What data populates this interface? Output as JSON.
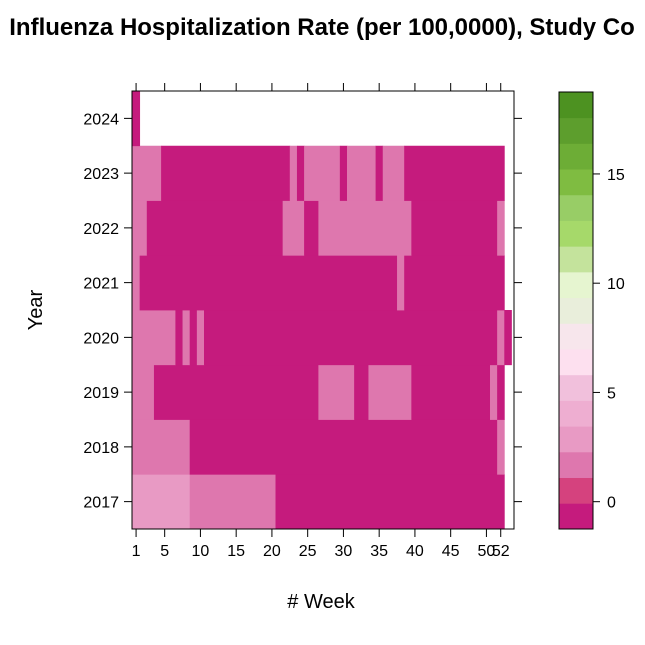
{
  "chart_data": {
    "type": "heatmap",
    "title": "Influenza Hospitalization Rate (per 100,0000), Study Co",
    "xlabel": "# Week",
    "ylabel": "Year",
    "x_ticks": [
      1,
      5,
      10,
      15,
      20,
      25,
      30,
      35,
      40,
      45,
      50,
      52
    ],
    "x_tick_labels": [
      "1",
      "5",
      "10",
      "15",
      "20",
      "25",
      "30",
      "35",
      "40",
      "45",
      "50",
      "52"
    ],
    "y_tick_labels": [
      "2017",
      "2018",
      "2019",
      "2020",
      "2021",
      "2022",
      "2023",
      "2024"
    ],
    "colorbar_ticks": [
      0,
      5,
      10,
      15
    ],
    "colorbar_tick_labels": [
      "0",
      "5",
      "10",
      "15"
    ],
    "colorbar_range": [
      -1.25,
      18.75
    ],
    "colorbar_colors": [
      "#C51B7D",
      "#D5427E",
      "#DE77AE",
      "#E89AC4",
      "#EEAED1",
      "#F1C0DC",
      "#FDE0EF",
      "#F7E6EC",
      "#E9EEDB",
      "#E6F5D0",
      "#C4E39C",
      "#A6D96A",
      "#98CD66",
      "#7FBC41",
      "#6DAD36",
      "#5D9E2D",
      "#4D9221"
    ],
    "rows": [
      {
        "year": "2017",
        "segments": [
          [
            1,
            8,
            2.4
          ],
          [
            9,
            20,
            1.4
          ],
          [
            21,
            52,
            -0.6
          ]
        ]
      },
      {
        "year": "2018",
        "segments": [
          [
            1,
            8,
            1.4
          ],
          [
            9,
            51,
            -0.6
          ],
          [
            52,
            52,
            1.4
          ]
        ]
      },
      {
        "year": "2019",
        "segments": [
          [
            1,
            3,
            1.4
          ],
          [
            4,
            26,
            -0.6
          ],
          [
            27,
            31,
            1.4
          ],
          [
            32,
            33,
            -0.6
          ],
          [
            34,
            39,
            1.4
          ],
          [
            40,
            50,
            -0.6
          ],
          [
            51,
            51,
            1.4
          ],
          [
            52,
            52,
            -0.6
          ]
        ]
      },
      {
        "year": "2020",
        "segments": [
          [
            1,
            6,
            1.4
          ],
          [
            7,
            7,
            -0.6
          ],
          [
            8,
            8,
            1.4
          ],
          [
            9,
            9,
            -0.6
          ],
          [
            10,
            10,
            1.4
          ],
          [
            11,
            51,
            -0.6
          ],
          [
            52,
            52,
            1.4
          ],
          [
            53,
            53,
            -0.6
          ]
        ]
      },
      {
        "year": "2021",
        "segments": [
          [
            1,
            1,
            1.4
          ],
          [
            2,
            37,
            -0.6
          ],
          [
            38,
            38,
            1.4
          ],
          [
            39,
            52,
            -0.6
          ]
        ]
      },
      {
        "year": "2022",
        "segments": [
          [
            1,
            2,
            1.4
          ],
          [
            3,
            21,
            -0.6
          ],
          [
            22,
            24,
            1.4
          ],
          [
            25,
            26,
            -0.6
          ],
          [
            27,
            39,
            1.4
          ],
          [
            40,
            51,
            -0.6
          ],
          [
            52,
            52,
            1.4
          ]
        ]
      },
      {
        "year": "2023",
        "segments": [
          [
            1,
            4,
            1.4
          ],
          [
            5,
            22,
            -0.6
          ],
          [
            23,
            23,
            1.4
          ],
          [
            24,
            24,
            -0.6
          ],
          [
            25,
            29,
            1.4
          ],
          [
            30,
            30,
            -0.6
          ],
          [
            31,
            34,
            1.4
          ],
          [
            35,
            35,
            -0.6
          ],
          [
            36,
            38,
            1.4
          ],
          [
            39,
            52,
            -0.6
          ]
        ]
      },
      {
        "year": "2024",
        "segments": [
          [
            1,
            1,
            -0.6
          ]
        ]
      }
    ]
  }
}
